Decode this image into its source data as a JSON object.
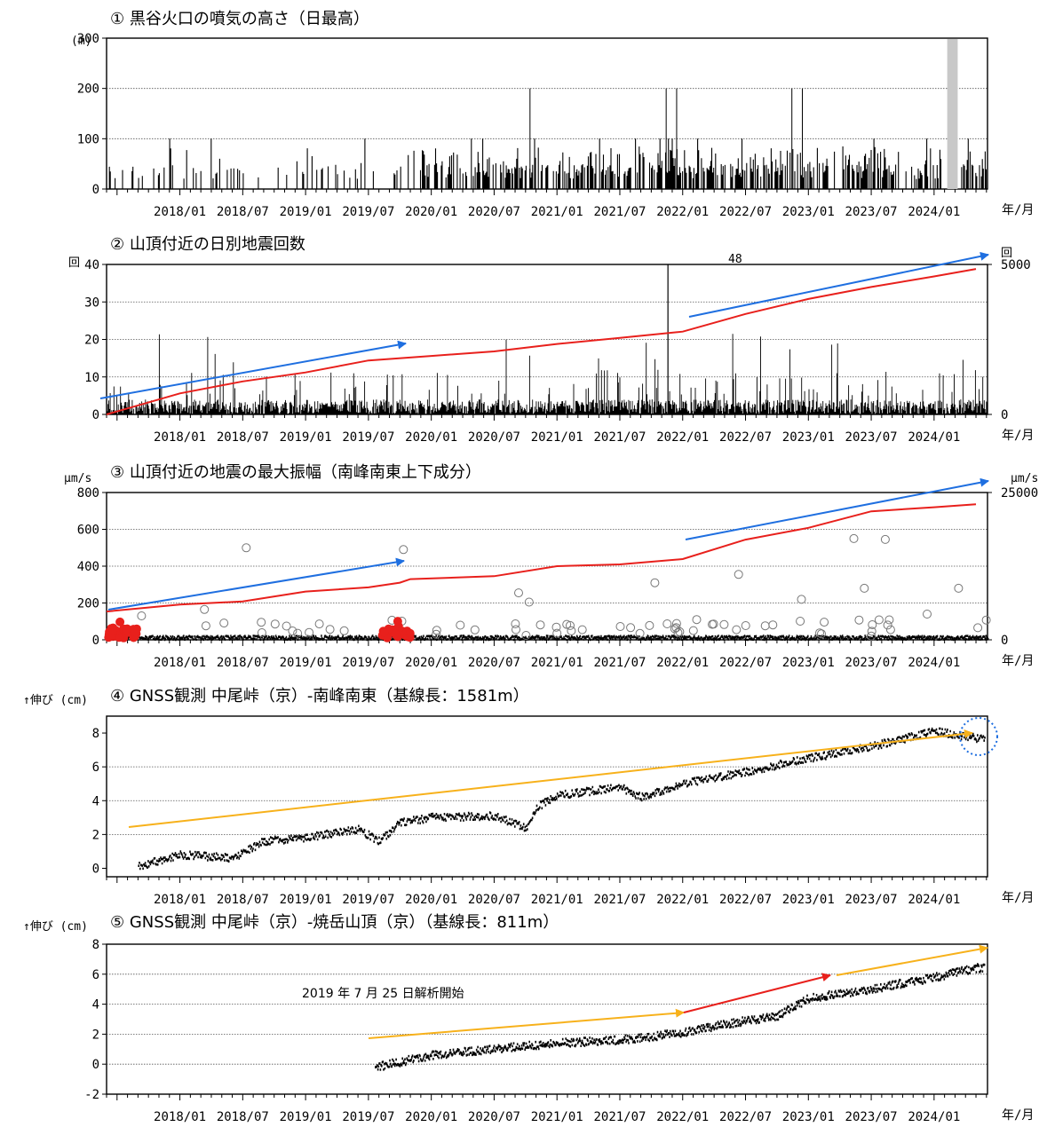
{
  "colors": {
    "red": "#e8201c",
    "blue": "#1f6fe0",
    "orange": "#f7b11b",
    "gray": "#c8c8c8",
    "black": "#000000",
    "grid": "#555555"
  },
  "x_tick_labels": [
    "2018/01",
    "2018/07",
    "2019/01",
    "2019/07",
    "2020/01",
    "2020/07",
    "2021/01",
    "2021/07",
    "2022/01",
    "2022/07",
    "2023/01",
    "2023/07",
    "2024/01"
  ],
  "x_unit": "年/月",
  "chart_data": [
    {
      "type": "bar",
      "title": "① 黒谷火口の噴気の高さ（日最高）",
      "ylabel": "(m)",
      "ylim": [
        0,
        300
      ],
      "yticks": [
        0,
        100,
        200,
        300
      ],
      "x_range": [
        "2017/06",
        "2024/05"
      ],
      "series": [
        {
          "values_summary": "daily max plume height, mostly 0-100 m, occasional 200 m peaks"
        }
      ],
      "peaks_200m": [
        "2020/10",
        "2021/11",
        "2021/12",
        "2022/11",
        "2022/12"
      ],
      "gray_band": [
        "2024/02",
        "2024/03"
      ]
    },
    {
      "type": "bar",
      "title": "② 山頂付近の日別地震回数",
      "ylabel": "回",
      "ylabel_right": "回",
      "ylim": [
        0,
        40
      ],
      "yticks": [
        0,
        10,
        20,
        30,
        40
      ],
      "y2lim": [
        0,
        5000
      ],
      "y2ticks": [
        0,
        5000
      ],
      "annotation": "48",
      "annotation_date": "2021/11",
      "cumulative": [
        {
          "date": "2017/06",
          "value": 0
        },
        {
          "date": "2018/01",
          "value": 700
        },
        {
          "date": "2018/07",
          "value": 1100
        },
        {
          "date": "2019/01",
          "value": 1400
        },
        {
          "date": "2019/07",
          "value": 1800
        },
        {
          "date": "2020/01",
          "value": 1950
        },
        {
          "date": "2020/07",
          "value": 2100
        },
        {
          "date": "2021/01",
          "value": 2350
        },
        {
          "date": "2021/07",
          "value": 2550
        },
        {
          "date": "2022/01",
          "value": 2760
        },
        {
          "date": "2022/07",
          "value": 3350
        },
        {
          "date": "2023/01",
          "value": 3850
        },
        {
          "date": "2023/07",
          "value": 4250
        },
        {
          "date": "2024/01",
          "value": 4600
        },
        {
          "date": "2024/05",
          "value": 4850
        }
      ]
    },
    {
      "type": "scatter",
      "title": "③ 山頂付近の地震の最大振幅（南峰南東上下成分）",
      "ylabel": "μm/s",
      "ylabel_right": "μm/s",
      "ylim": [
        0,
        800
      ],
      "yticks": [
        0,
        200,
        400,
        600,
        800
      ],
      "y2lim": [
        0,
        25000
      ],
      "y2ticks": [
        0,
        25000
      ],
      "large_events": [
        {
          "date": "2017/09",
          "value": 130
        },
        {
          "date": "2018/03",
          "value": 165
        },
        {
          "date": "2018/07",
          "value": 500
        },
        {
          "date": "2019/10",
          "value": 490
        },
        {
          "date": "2020/09",
          "value": 255
        },
        {
          "date": "2020/10",
          "value": 205
        },
        {
          "date": "2021/10",
          "value": 310
        },
        {
          "date": "2022/06",
          "value": 355
        },
        {
          "date": "2022/12",
          "value": 220
        },
        {
          "date": "2023/05",
          "value": 550
        },
        {
          "date": "2023/06",
          "value": 280
        },
        {
          "date": "2023/08",
          "value": 545
        },
        {
          "date": "2024/03",
          "value": 280
        },
        {
          "date": "2023/12",
          "value": 140
        },
        {
          "date": "2022/02",
          "value": 110
        }
      ],
      "red_events_period": [
        "2017/06-2017/08",
        "2019/08-2019/11"
      ],
      "cumulative": [
        {
          "date": "2017/06",
          "value": 4800
        },
        {
          "date": "2018/01",
          "value": 6000
        },
        {
          "date": "2018/07",
          "value": 6500
        },
        {
          "date": "2019/01",
          "value": 8200
        },
        {
          "date": "2019/07",
          "value": 8900
        },
        {
          "date": "2019/10",
          "value": 9700
        },
        {
          "date": "2019/11",
          "value": 10300
        },
        {
          "date": "2020/07",
          "value": 10800
        },
        {
          "date": "2021/01",
          "value": 12500
        },
        {
          "date": "2021/07",
          "value": 12800
        },
        {
          "date": "2022/01",
          "value": 13700
        },
        {
          "date": "2022/07",
          "value": 17000
        },
        {
          "date": "2023/01",
          "value": 19000
        },
        {
          "date": "2023/07",
          "value": 21800
        },
        {
          "date": "2024/01",
          "value": 22500
        },
        {
          "date": "2024/05",
          "value": 23000
        }
      ]
    },
    {
      "type": "scatter",
      "title": "④ GNSS観測 中尾峠（京）-南峰南東（基線長：1581m）",
      "ylabel": "↑伸び (cm)",
      "ylim": [
        -0.5,
        9
      ],
      "yticks": [
        0,
        2,
        4,
        6,
        8
      ],
      "trend": [
        {
          "date": "2017/09",
          "value": 0.1
        },
        {
          "date": "2018/01",
          "value": 0.8
        },
        {
          "date": "2018/06",
          "value": 0.6
        },
        {
          "date": "2018/09",
          "value": 1.6
        },
        {
          "date": "2019/01",
          "value": 1.8
        },
        {
          "date": "2019/06",
          "value": 2.3
        },
        {
          "date": "2019/08",
          "value": 1.6
        },
        {
          "date": "2019/10",
          "value": 2.7
        },
        {
          "date": "2020/01",
          "value": 3.0
        },
        {
          "date": "2020/07",
          "value": 3.1
        },
        {
          "date": "2020/10",
          "value": 2.4
        },
        {
          "date": "2020/11",
          "value": 3.6
        },
        {
          "date": "2021/01",
          "value": 4.3
        },
        {
          "date": "2021/07",
          "value": 4.8
        },
        {
          "date": "2021/09",
          "value": 4.2
        },
        {
          "date": "2022/01",
          "value": 5.0
        },
        {
          "date": "2022/07",
          "value": 5.7
        },
        {
          "date": "2023/01",
          "value": 6.5
        },
        {
          "date": "2023/07",
          "value": 7.2
        },
        {
          "date": "2024/01",
          "value": 8.1
        },
        {
          "date": "2024/05",
          "value": 7.7
        }
      ]
    },
    {
      "type": "scatter",
      "title": "⑤ GNSS観測 中尾峠（京）-焼岳山頂（京）（基線長：811m）",
      "ylabel": "↑伸び (cm)",
      "ylim": [
        -2,
        8
      ],
      "yticks": [
        -2,
        0,
        2,
        4,
        6,
        8
      ],
      "annotation": "2019 年 7 月 25 日解析開始",
      "trend": [
        {
          "date": "2019/07",
          "value": -0.3
        },
        {
          "date": "2020/01",
          "value": 0.6
        },
        {
          "date": "2020/07",
          "value": 1.0
        },
        {
          "date": "2021/01",
          "value": 1.4
        },
        {
          "date": "2021/07",
          "value": 1.6
        },
        {
          "date": "2022/01",
          "value": 2.1
        },
        {
          "date": "2022/07",
          "value": 2.9
        },
        {
          "date": "2022/10",
          "value": 3.2
        },
        {
          "date": "2023/01",
          "value": 4.4
        },
        {
          "date": "2023/07",
          "value": 5.0
        },
        {
          "date": "2024/01",
          "value": 5.8
        },
        {
          "date": "2024/05",
          "value": 6.4
        }
      ]
    }
  ]
}
